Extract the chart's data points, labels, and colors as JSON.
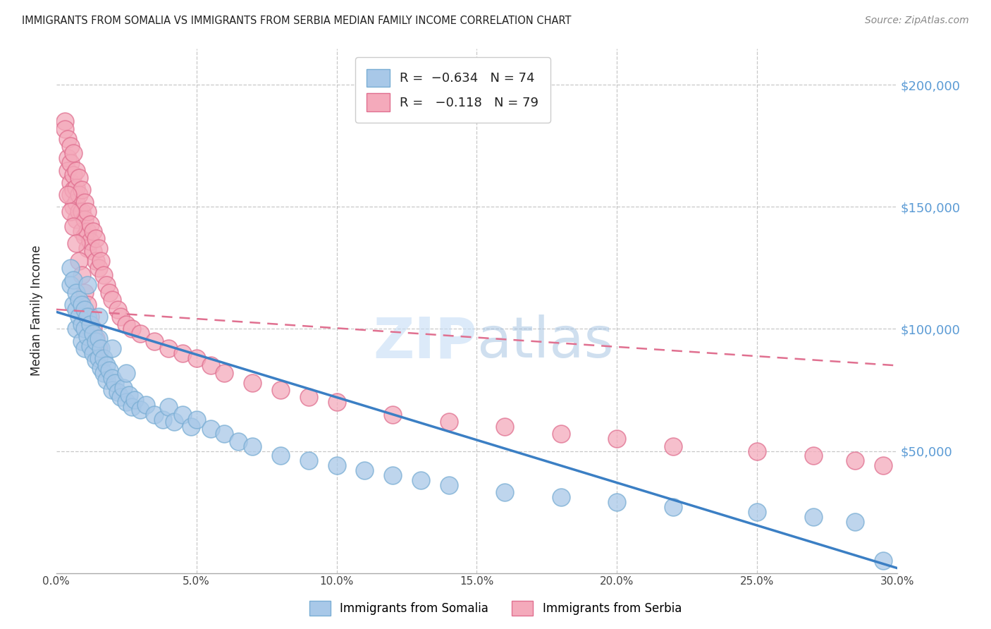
{
  "title": "IMMIGRANTS FROM SOMALIA VS IMMIGRANTS FROM SERBIA MEDIAN FAMILY INCOME CORRELATION CHART",
  "source": "Source: ZipAtlas.com",
  "ylabel": "Median Family Income",
  "xlim": [
    0.0,
    0.3
  ],
  "ylim": [
    0,
    215000
  ],
  "background_color": "#ffffff",
  "somalia_color": "#a8c8e8",
  "somalia_edge": "#7aaed4",
  "serbia_color": "#f4aabb",
  "serbia_edge": "#e07090",
  "grid_color": "#bbbbbb",
  "title_color": "#222222",
  "ytick_color": "#5b9bd5",
  "xtick_color": "#444444",
  "somalia_line_color": "#3b7fc4",
  "serbia_line_color": "#e07090",
  "somalia_line_x": [
    0.0,
    0.3
  ],
  "somalia_line_y": [
    107000,
    2000
  ],
  "serbia_line_x": [
    0.0,
    0.3
  ],
  "serbia_line_y": [
    108000,
    85000
  ],
  "watermark_zip": "ZIP",
  "watermark_atlas": "atlas",
  "somalia_x": [
    0.005,
    0.005,
    0.006,
    0.006,
    0.007,
    0.007,
    0.007,
    0.008,
    0.008,
    0.009,
    0.009,
    0.009,
    0.01,
    0.01,
    0.01,
    0.011,
    0.011,
    0.012,
    0.012,
    0.013,
    0.013,
    0.014,
    0.014,
    0.015,
    0.015,
    0.016,
    0.016,
    0.017,
    0.017,
    0.018,
    0.018,
    0.019,
    0.02,
    0.02,
    0.021,
    0.022,
    0.023,
    0.024,
    0.025,
    0.026,
    0.027,
    0.028,
    0.03,
    0.032,
    0.035,
    0.038,
    0.04,
    0.042,
    0.045,
    0.048,
    0.05,
    0.055,
    0.06,
    0.065,
    0.07,
    0.08,
    0.09,
    0.1,
    0.11,
    0.12,
    0.13,
    0.14,
    0.16,
    0.18,
    0.2,
    0.22,
    0.25,
    0.27,
    0.285,
    0.295,
    0.011,
    0.015,
    0.02,
    0.025
  ],
  "somalia_y": [
    125000,
    118000,
    120000,
    110000,
    115000,
    108000,
    100000,
    112000,
    105000,
    110000,
    102000,
    95000,
    108000,
    100000,
    92000,
    105000,
    97000,
    102000,
    93000,
    98000,
    90000,
    95000,
    87000,
    96000,
    88000,
    92000,
    84000,
    88000,
    82000,
    85000,
    79000,
    83000,
    80000,
    75000,
    78000,
    74000,
    72000,
    76000,
    70000,
    73000,
    68000,
    71000,
    67000,
    69000,
    65000,
    63000,
    68000,
    62000,
    65000,
    60000,
    63000,
    59000,
    57000,
    54000,
    52000,
    48000,
    46000,
    44000,
    42000,
    40000,
    38000,
    36000,
    33000,
    31000,
    29000,
    27000,
    25000,
    23000,
    21000,
    5000,
    118000,
    105000,
    92000,
    82000
  ],
  "serbia_x": [
    0.003,
    0.003,
    0.004,
    0.004,
    0.004,
    0.005,
    0.005,
    0.005,
    0.005,
    0.006,
    0.006,
    0.006,
    0.006,
    0.007,
    0.007,
    0.007,
    0.007,
    0.008,
    0.008,
    0.008,
    0.009,
    0.009,
    0.009,
    0.01,
    0.01,
    0.01,
    0.011,
    0.011,
    0.011,
    0.012,
    0.012,
    0.013,
    0.013,
    0.014,
    0.014,
    0.015,
    0.015,
    0.016,
    0.017,
    0.018,
    0.019,
    0.02,
    0.022,
    0.023,
    0.025,
    0.027,
    0.03,
    0.035,
    0.04,
    0.045,
    0.05,
    0.055,
    0.06,
    0.07,
    0.08,
    0.09,
    0.1,
    0.12,
    0.14,
    0.16,
    0.18,
    0.2,
    0.22,
    0.25,
    0.27,
    0.285,
    0.295,
    0.004,
    0.005,
    0.006,
    0.007,
    0.008,
    0.009,
    0.01,
    0.011,
    0.012,
    0.013,
    0.014,
    0.015
  ],
  "serbia_y": [
    185000,
    182000,
    178000,
    170000,
    165000,
    175000,
    168000,
    160000,
    155000,
    172000,
    163000,
    157000,
    150000,
    165000,
    158000,
    152000,
    145000,
    162000,
    155000,
    148000,
    157000,
    148000,
    140000,
    152000,
    145000,
    138000,
    148000,
    140000,
    133000,
    143000,
    136000,
    140000,
    132000,
    137000,
    128000,
    133000,
    125000,
    128000,
    122000,
    118000,
    115000,
    112000,
    108000,
    105000,
    102000,
    100000,
    98000,
    95000,
    92000,
    90000,
    88000,
    85000,
    82000,
    78000,
    75000,
    72000,
    70000,
    65000,
    62000,
    60000,
    57000,
    55000,
    52000,
    50000,
    48000,
    46000,
    44000,
    155000,
    148000,
    142000,
    135000,
    128000,
    122000,
    115000,
    110000,
    105000,
    100000,
    96000,
    92000
  ]
}
